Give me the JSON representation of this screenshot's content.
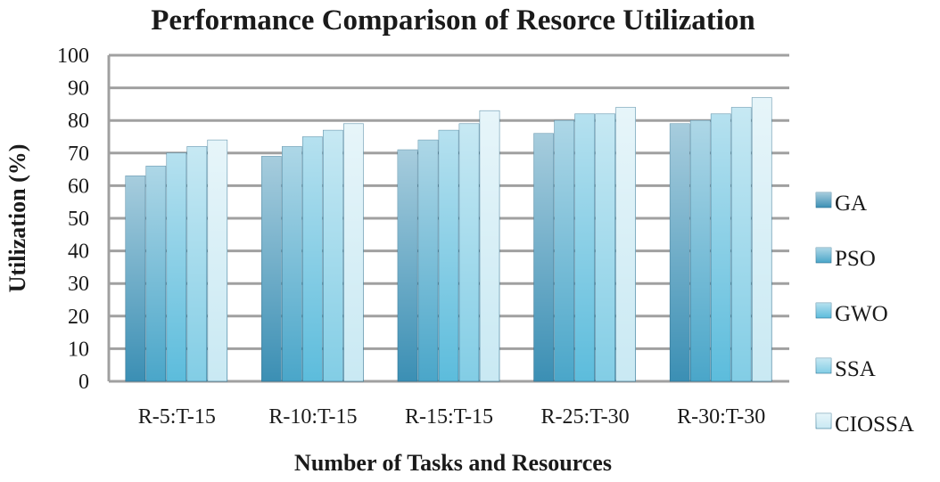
{
  "chart_data": {
    "type": "bar",
    "title": "Performance Comparison of Resorce Utilization",
    "xlabel": "Number  of  Tasks and Resources",
    "ylabel": "Utilization (%)",
    "ylim": [
      0,
      100
    ],
    "yticks": [
      0,
      10,
      20,
      30,
      40,
      50,
      60,
      70,
      80,
      90,
      100
    ],
    "grid": true,
    "legend_position": "right",
    "categories": [
      "R-5:T-15",
      "R-10:T-15",
      "R-15:T-15",
      "R-25:T-30",
      "R-30:T-30"
    ],
    "series": [
      {
        "name": "GA",
        "values": [
          63,
          69,
          71,
          76,
          79
        ],
        "color": "#3b8fb4"
      },
      {
        "name": "PSO",
        "values": [
          66,
          72,
          74,
          80,
          80
        ],
        "color": "#4aa6c9"
      },
      {
        "name": " GWO",
        "values": [
          70,
          75,
          77,
          82,
          82
        ],
        "color": "#5cbcdc"
      },
      {
        "name": "SSA",
        "values": [
          72,
          77,
          79,
          82,
          84
        ],
        "color": "#82cde5"
      },
      {
        "name": "CIOSSA",
        "values": [
          74,
          79,
          83,
          84,
          87
        ],
        "color": "#c9e9f3"
      }
    ]
  }
}
